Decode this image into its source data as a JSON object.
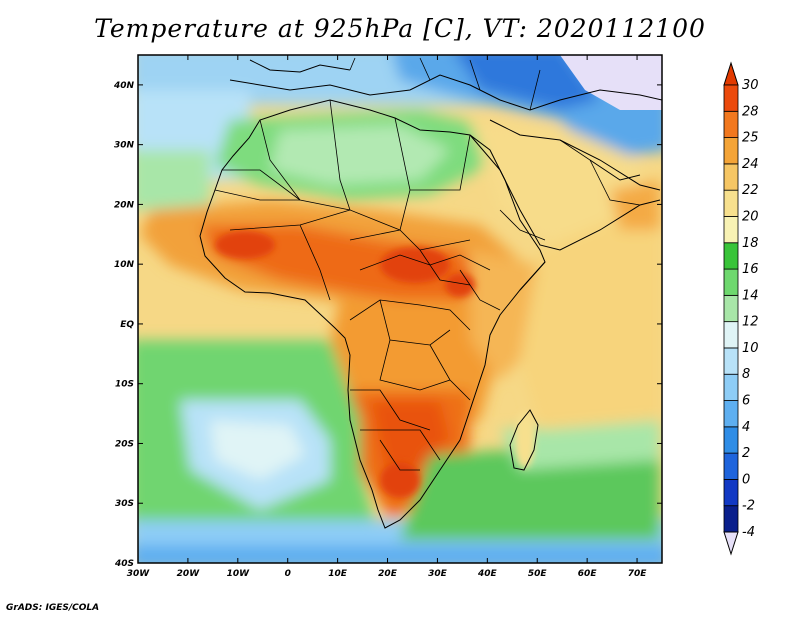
{
  "title": "Temperature at 925hPa [C], VT: 2020112100",
  "credit": "GrADS: IGES/COLA",
  "map": {
    "lon_range": [
      -30,
      75
    ],
    "lat_range": [
      -40,
      45
    ],
    "lat_ticks": [
      {
        "value": 40,
        "label": "40N"
      },
      {
        "value": 30,
        "label": "30N"
      },
      {
        "value": 20,
        "label": "20N"
      },
      {
        "value": 10,
        "label": "10N"
      },
      {
        "value": 0,
        "label": "EQ"
      },
      {
        "value": -10,
        "label": "10S"
      },
      {
        "value": -20,
        "label": "20S"
      },
      {
        "value": -30,
        "label": "30S"
      },
      {
        "value": -40,
        "label": "40S"
      }
    ],
    "lon_ticks": [
      {
        "value": -30,
        "label": "30W"
      },
      {
        "value": -20,
        "label": "20W"
      },
      {
        "value": -10,
        "label": "10W"
      },
      {
        "value": 0,
        "label": "0"
      },
      {
        "value": 10,
        "label": "10E"
      },
      {
        "value": 20,
        "label": "20E"
      },
      {
        "value": 30,
        "label": "30E"
      },
      {
        "value": 40,
        "label": "40E"
      },
      {
        "value": 50,
        "label": "50E"
      },
      {
        "value": 60,
        "label": "60E"
      },
      {
        "value": 70,
        "label": "70E"
      }
    ],
    "colors": {
      "below_min": "#e6e0f8",
      "above_max": "#e23a00",
      "ocean_cool": "#a6d8f3",
      "ocean_mid": "#5cc85c",
      "ocean_warm": "#f6d886"
    }
  },
  "colorbar": {
    "labels": [
      "-4",
      "-2",
      "0",
      "2",
      "4",
      "6",
      "8",
      "10",
      "12",
      "14",
      "16",
      "18",
      "20",
      "22",
      "24",
      "25",
      "28",
      "30"
    ],
    "colors": [
      "#0a1f8c",
      "#1239c4",
      "#1e64dc",
      "#2f8de6",
      "#5eaff0",
      "#8ecdf6",
      "#b8e2f8",
      "#e0f4f6",
      "#a8e6a8",
      "#6ed86e",
      "#39c439",
      "#f8f2b4",
      "#f7e08e",
      "#f6c664",
      "#f4a437",
      "#f2781e",
      "#ec4a0c"
    ]
  }
}
